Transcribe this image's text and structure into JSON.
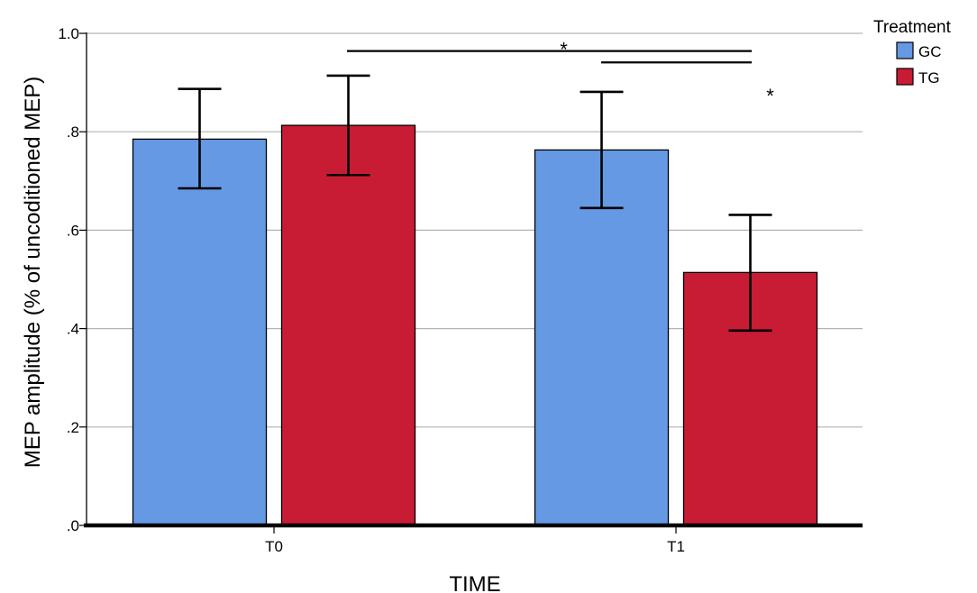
{
  "chart_data": {
    "type": "bar",
    "categories": [
      "T0",
      "T1"
    ],
    "series": [
      {
        "name": "GC",
        "color": "#6699E3",
        "values": [
          0.785,
          0.763
        ],
        "error_low": [
          0.685,
          0.645
        ],
        "error_high": [
          0.887,
          0.881
        ]
      },
      {
        "name": "TG",
        "color": "#C81C35",
        "values": [
          0.813,
          0.514
        ],
        "error_low": [
          0.712,
          0.396
        ],
        "error_high": [
          0.914,
          0.631
        ]
      }
    ],
    "xlabel": "TIME",
    "ylabel": "MEP amplitude (% of uncoditioned MEP)",
    "ylim": [
      0,
      1.0
    ],
    "yticks": [
      {
        "value": 0.0,
        "label": ".0"
      },
      {
        "value": 0.2,
        "label": ".2"
      },
      {
        "value": 0.4,
        "label": ".4"
      },
      {
        "value": 0.6,
        "label": ".6"
      },
      {
        "value": 0.8,
        "label": ".8"
      },
      {
        "value": 1.0,
        "label": "1.0"
      }
    ],
    "grid": true,
    "legend": {
      "title": "Treatment",
      "placement": "top-right"
    },
    "significance": [
      {
        "from": "T0.TG",
        "to": "T1.TG",
        "label": "*",
        "level": 0.964
      },
      {
        "from": "T1.GC",
        "to": "T1.TG",
        "label": "*",
        "level": 0.941
      }
    ]
  }
}
